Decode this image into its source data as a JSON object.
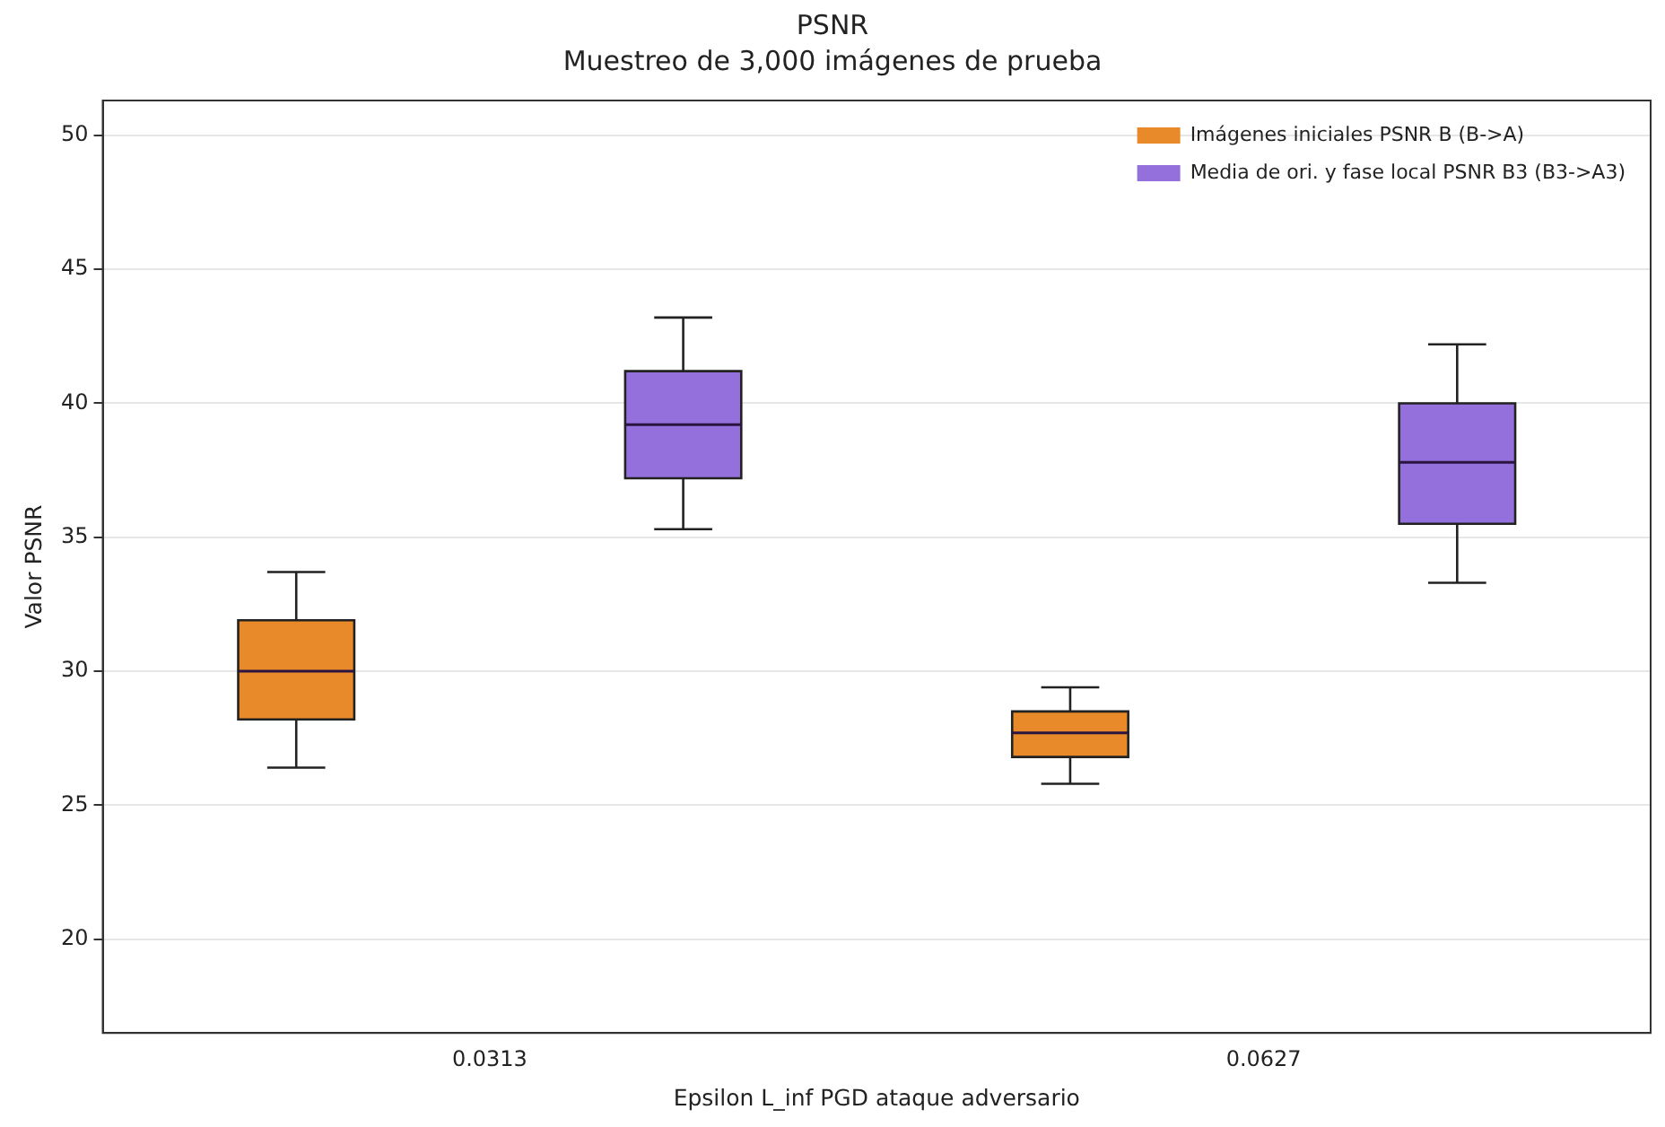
{
  "chart_data": {
    "type": "box",
    "title": "PSNR",
    "subtitle": "Muestreo de 3,000 imágenes de prueba",
    "xlabel": "Epsilon L_inf PGD ataque adversario",
    "ylabel": "Valor PSNR",
    "categories": [
      "0.0313",
      "0.0627"
    ],
    "series": [
      {
        "name": "Imágenes iniciales PSNR B (B->A)",
        "color": "#e8892a",
        "boxes": [
          {
            "low": 26.4,
            "q1": 28.2,
            "median": 30.0,
            "q3": 31.9,
            "high": 33.7
          },
          {
            "low": 25.8,
            "q1": 26.8,
            "median": 27.7,
            "q3": 28.5,
            "high": 29.4
          }
        ]
      },
      {
        "name": "Media de ori. y fase local PSNR B3 (B3->A3)",
        "color": "#9370db",
        "boxes": [
          {
            "low": 35.3,
            "q1": 37.2,
            "median": 39.2,
            "q3": 41.2,
            "high": 43.2
          },
          {
            "low": 33.3,
            "q1": 35.5,
            "median": 37.8,
            "q3": 40.0,
            "high": 42.2
          }
        ]
      }
    ],
    "ylim": [
      16.5,
      51.3
    ],
    "yticks": [
      20,
      25,
      30,
      35,
      40,
      45,
      50
    ],
    "grid": "y",
    "legend": "top right"
  }
}
